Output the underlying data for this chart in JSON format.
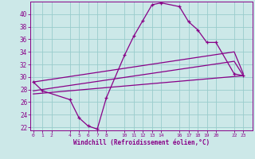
{
  "xlabel": "Windchill (Refroidissement éolien,°C)",
  "background_color": "#cce8e8",
  "grid_color": "#99cccc",
  "line_color": "#880088",
  "x_ticks": [
    0,
    1,
    2,
    4,
    5,
    6,
    7,
    8,
    10,
    11,
    12,
    13,
    14,
    16,
    17,
    18,
    19,
    20,
    22,
    23
  ],
  "x_tick_labels": [
    "0",
    "1",
    "2",
    "4",
    "5",
    "6",
    "7",
    "8",
    "10",
    "11",
    "12",
    "13",
    "14",
    "16",
    "17",
    "18",
    "19",
    "20",
    "22",
    "23"
  ],
  "ylim": [
    21.5,
    42.0
  ],
  "xlim": [
    -0.3,
    24.0
  ],
  "yticks": [
    22,
    24,
    26,
    28,
    30,
    32,
    34,
    36,
    38,
    40
  ],
  "curve1_x": [
    0,
    1,
    4,
    5,
    6,
    7,
    8,
    10,
    11,
    12,
    13,
    14,
    16,
    17,
    18,
    19,
    20,
    22,
    23
  ],
  "curve1_y": [
    29.2,
    27.8,
    26.4,
    23.5,
    22.2,
    21.7,
    26.7,
    33.5,
    36.5,
    39.0,
    41.5,
    41.8,
    41.2,
    38.8,
    37.5,
    35.5,
    35.5,
    30.5,
    30.2
  ],
  "curve2_x": [
    0,
    22,
    23
  ],
  "curve2_y": [
    29.2,
    34.0,
    30.5
  ],
  "curve3_x": [
    0,
    22,
    23
  ],
  "curve3_y": [
    27.8,
    32.5,
    30.2
  ],
  "curve4_x": [
    0,
    23
  ],
  "curve4_y": [
    27.3,
    30.2
  ]
}
